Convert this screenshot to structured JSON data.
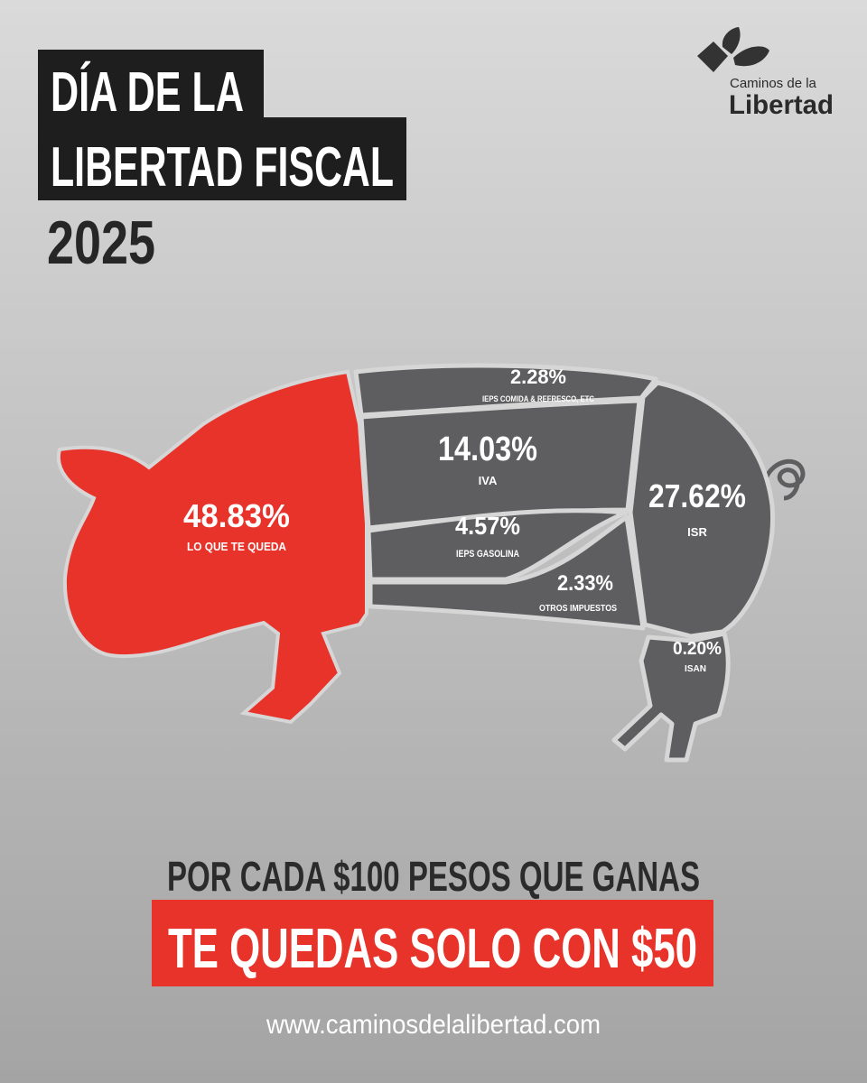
{
  "header": {
    "title_lines": [
      "DÍA DE LA",
      "LIBERTAD FISCAL"
    ],
    "year": "2025",
    "logo": {
      "line1": "Caminos de la",
      "line2": "Libertad"
    }
  },
  "segments": [
    {
      "value": "48.83%",
      "label": "LO QUE TE QUEDA"
    },
    {
      "value": "2.28%",
      "label": "IEPS COMIDA & REFRESCO, ETC"
    },
    {
      "value": "14.03%",
      "label": "IVA"
    },
    {
      "value": "4.57%",
      "label": "IEPS GASOLINA"
    },
    {
      "value": "2.33%",
      "label": "OTROS IMPUESTOS"
    },
    {
      "value": "27.62%",
      "label": "ISR"
    },
    {
      "value": "0.20%",
      "label": "ISAN"
    }
  ],
  "footer": {
    "line1": "POR CADA $100 PESOS QUE GANAS",
    "line2": "TE QUEDAS SOLO CON $50",
    "url": "www.caminosdelalibertad.com"
  }
}
